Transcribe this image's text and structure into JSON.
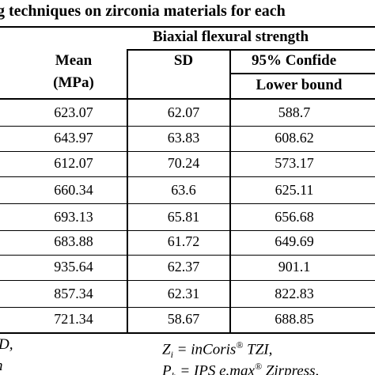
{
  "title": "g techniques on zirconia materials for each",
  "group_header": "Biaxial flexural strength",
  "columns": {
    "mean": [
      "Mean",
      "(MPa)"
    ],
    "sd": "SD",
    "ci": "95% Confide",
    "lower": "Lower bound"
  },
  "rows": [
    [
      "623.07",
      "62.07",
      "588.7"
    ],
    [
      "643.97",
      "63.83",
      "608.62"
    ],
    [
      "612.07",
      "70.24",
      "573.17"
    ],
    [
      "660.34",
      "63.6",
      "625.11"
    ],
    [
      "693.13",
      "65.81",
      "656.68"
    ],
    [
      "683.88",
      "61.72",
      "649.69"
    ],
    [
      "935.64",
      "62.37",
      "901.1"
    ],
    [
      "857.34",
      "62.31",
      "822.83"
    ],
    [
      "721.34",
      "58.67",
      "688.85"
    ]
  ],
  "footnotes": [
    {
      "left": "D,",
      "symbol": "Z",
      "sub": "i",
      "text": " = inCoris",
      "sup": "®",
      "rest": " TZI,"
    },
    {
      "left": "n",
      "symbol": "P",
      "sub": "h",
      "text": " = IPS e.max",
      "sup": "®",
      "rest": " Zirpress,"
    }
  ]
}
